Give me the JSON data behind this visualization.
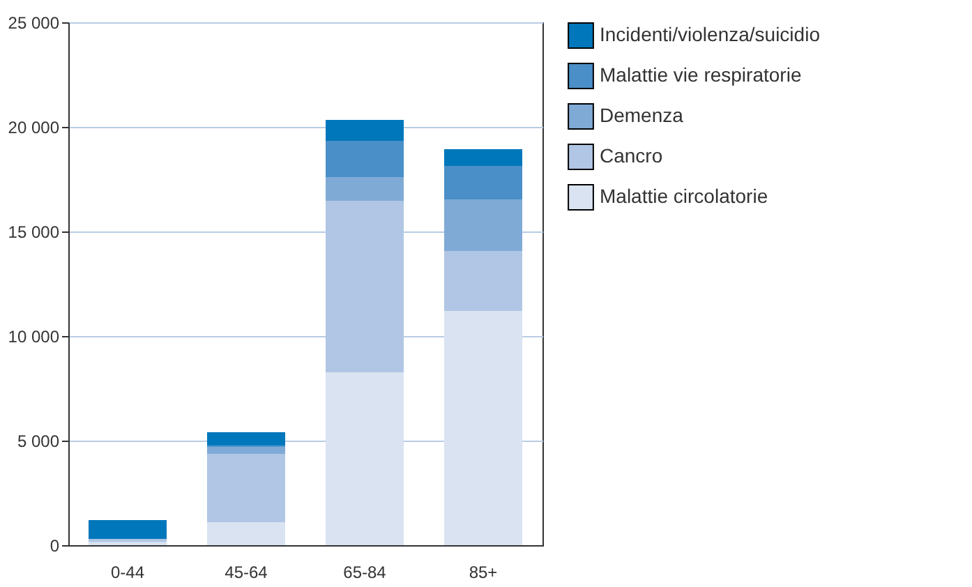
{
  "chart_data": {
    "type": "bar",
    "stacked": true,
    "categories": [
      "0-44",
      "45-64",
      "65-84",
      "85+"
    ],
    "series": [
      {
        "name": "Malattie circolatorie",
        "color": "#d9e3f1",
        "values": [
          150,
          1100,
          8270,
          11200
        ]
      },
      {
        "name": "Cancro",
        "color": "#b0c6e4",
        "values": [
          150,
          3250,
          8200,
          2870
        ]
      },
      {
        "name": "Demenza",
        "color": "#80aad6",
        "values": [
          0,
          350,
          1130,
          2460
        ]
      },
      {
        "name": "Malattie vie respiratorie",
        "color": "#4a8fc8",
        "values": [
          0,
          50,
          1730,
          1600
        ]
      },
      {
        "name": "Incidenti/violenza/suicidio",
        "color": "#0077bb",
        "values": [
          900,
          650,
          1000,
          800
        ]
      }
    ],
    "ylim": [
      0,
      25000
    ],
    "yticks": [
      {
        "value": 0,
        "label": "0"
      },
      {
        "value": 5000,
        "label": "5 000"
      },
      {
        "value": 10000,
        "label": "10 000"
      },
      {
        "value": 15000,
        "label": "15 000"
      },
      {
        "value": 20000,
        "label": "20 000"
      },
      {
        "value": 25000,
        "label": "25 000"
      }
    ],
    "grid": "y",
    "legend": "right"
  }
}
